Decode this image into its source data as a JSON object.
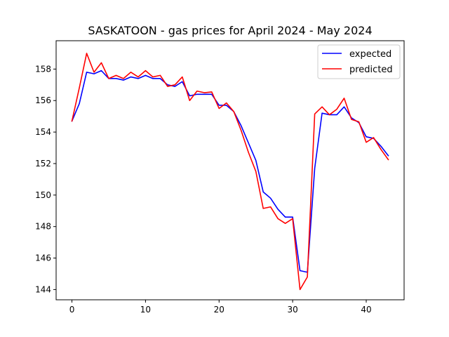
{
  "chart_data": {
    "type": "line",
    "title": "SASKATOON - gas prices for April 2024 - May 2024",
    "xlabel": "",
    "ylabel": "",
    "xlim": [
      -2.15,
      45.15
    ],
    "ylim": [
      143.35,
      159.8
    ],
    "xticks": [
      0,
      10,
      20,
      30,
      40
    ],
    "yticks": [
      144,
      146,
      148,
      150,
      152,
      154,
      156,
      158
    ],
    "grid": false,
    "legend_position": "upper right",
    "x": [
      0,
      1,
      2,
      3,
      4,
      5,
      6,
      7,
      8,
      9,
      10,
      11,
      12,
      13,
      14,
      15,
      16,
      17,
      18,
      19,
      20,
      21,
      22,
      23,
      24,
      25,
      26,
      27,
      28,
      29,
      30,
      31,
      32,
      33,
      34,
      35,
      36,
      37,
      38,
      39,
      40,
      41,
      42,
      43
    ],
    "series": [
      {
        "name": "expected",
        "color": "#0000ff",
        "values": [
          154.7,
          155.8,
          157.8,
          157.7,
          157.9,
          157.4,
          157.4,
          157.3,
          157.5,
          157.4,
          157.6,
          157.4,
          157.4,
          157.0,
          156.9,
          157.2,
          156.3,
          156.4,
          156.4,
          156.4,
          155.7,
          155.7,
          155.3,
          154.4,
          153.3,
          152.2,
          150.2,
          149.8,
          149.1,
          148.6,
          148.6,
          145.2,
          145.1,
          151.7,
          155.2,
          155.1,
          155.1,
          155.6,
          154.9,
          154.6,
          153.7,
          153.6,
          153.1,
          152.5
        ]
      },
      {
        "name": "predicted",
        "color": "#ff0000",
        "values": [
          154.7,
          156.8,
          159.0,
          157.8,
          158.4,
          157.4,
          157.6,
          157.4,
          157.8,
          157.5,
          157.9,
          157.5,
          157.6,
          156.9,
          157.0,
          157.5,
          156.0,
          156.6,
          156.5,
          156.55,
          155.5,
          155.85,
          155.3,
          154.1,
          152.7,
          151.5,
          149.15,
          149.25,
          148.5,
          148.2,
          148.5,
          144.0,
          144.8,
          155.15,
          155.6,
          155.1,
          155.45,
          156.15,
          154.8,
          154.65,
          153.35,
          153.65,
          152.9,
          152.25
        ]
      }
    ]
  }
}
